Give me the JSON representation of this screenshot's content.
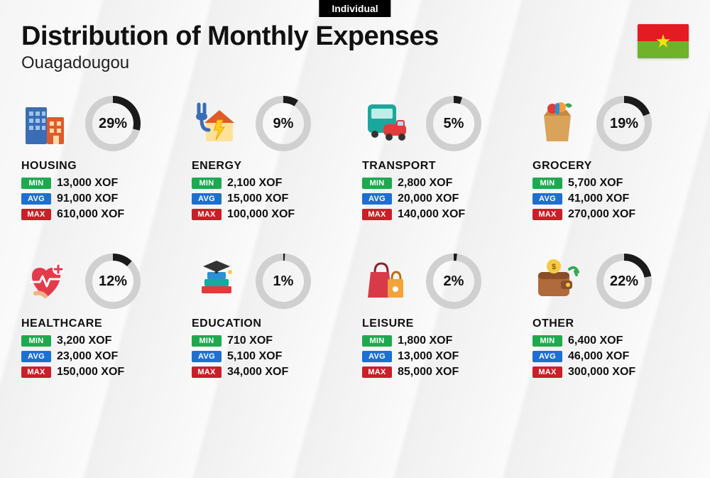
{
  "badge": "Individual",
  "title": "Distribution of Monthly Expenses",
  "city": "Ouagadougou",
  "currency": "XOF",
  "flag": {
    "top": "#e31b23",
    "bottom": "#70b22a",
    "star": "#f7e017"
  },
  "donut": {
    "ring_color": "#d0d0d0",
    "progress_color": "#1a1a1a",
    "ring_width": 10,
    "radius": 34,
    "label_fontsize": 20
  },
  "pill_colors": {
    "min": "#1ea94f",
    "avg": "#1d6fd4",
    "max": "#c91f28"
  },
  "labels": {
    "min": "MIN",
    "avg": "AVG",
    "max": "MAX"
  },
  "categories": [
    {
      "key": "housing",
      "name": "HOUSING",
      "percent": 29,
      "min": "13,000",
      "avg": "91,000",
      "max": "610,000",
      "icon": "buildings"
    },
    {
      "key": "energy",
      "name": "ENERGY",
      "percent": 9,
      "min": "2,100",
      "avg": "15,000",
      "max": "100,000",
      "icon": "energy"
    },
    {
      "key": "transport",
      "name": "TRANSPORT",
      "percent": 5,
      "min": "2,800",
      "avg": "20,000",
      "max": "140,000",
      "icon": "transport"
    },
    {
      "key": "grocery",
      "name": "GROCERY",
      "percent": 19,
      "min": "5,700",
      "avg": "41,000",
      "max": "270,000",
      "icon": "grocery"
    },
    {
      "key": "healthcare",
      "name": "HEALTHCARE",
      "percent": 12,
      "min": "3,200",
      "avg": "23,000",
      "max": "150,000",
      "icon": "healthcare"
    },
    {
      "key": "education",
      "name": "EDUCATION",
      "percent": 1,
      "min": "710",
      "avg": "5,100",
      "max": "34,000",
      "icon": "education"
    },
    {
      "key": "leisure",
      "name": "LEISURE",
      "percent": 2,
      "min": "1,800",
      "avg": "13,000",
      "max": "85,000",
      "icon": "leisure"
    },
    {
      "key": "other",
      "name": "OTHER",
      "percent": 22,
      "min": "6,400",
      "avg": "46,000",
      "max": "300,000",
      "icon": "wallet"
    }
  ]
}
